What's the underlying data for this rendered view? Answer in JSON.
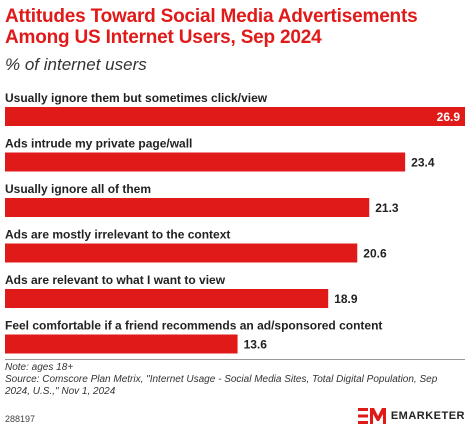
{
  "title": "Attitudes Toward Social Media Advertisements Among US Internet Users, Sep 2024",
  "subtitle": "% of internet users",
  "chart_data": {
    "type": "bar",
    "orientation": "horizontal",
    "categories": [
      "Usually ignore them but sometimes click/view",
      "Ads intrude my private page/wall",
      "Usually ignore all of them",
      "Ads are mostly irrelevant to the context",
      "Ads are relevant to what I want to view",
      "Feel comfortable if a friend recommends an ad/sponsored content"
    ],
    "values": [
      26.9,
      23.4,
      21.3,
      20.6,
      18.9,
      13.6
    ],
    "value_labels": [
      "26.9",
      "23.4",
      "21.3",
      "20.6",
      "18.9",
      "13.6"
    ],
    "xlim": [
      0,
      26.9
    ],
    "bar_color": "#e01919",
    "grid": false
  },
  "note": "Note: ages 18+",
  "source": "Source: Comscore Plan Metrix, \"Internet Usage - Social Media Sites, Total Digital Population, Sep 2024, U.S.,\" Nov 1, 2024",
  "figure_id": "288197",
  "brand": {
    "name": "EMARKETER",
    "color": "#e01919"
  }
}
